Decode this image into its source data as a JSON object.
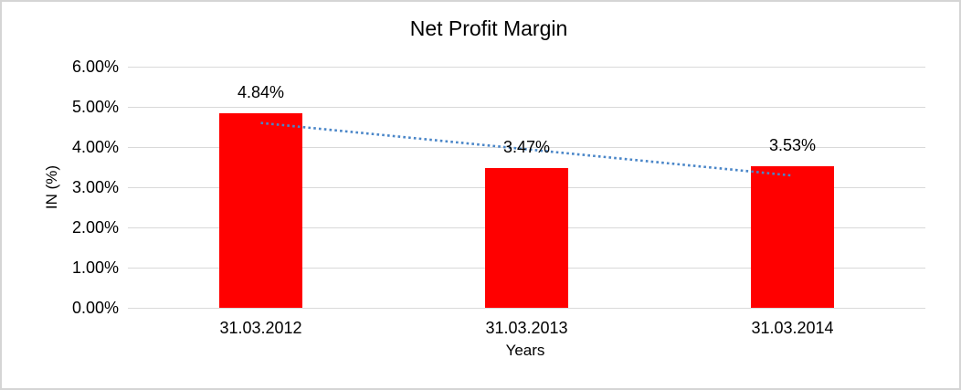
{
  "chart_data": {
    "type": "bar",
    "title": "Net Profit Margin",
    "xlabel": "Years",
    "ylabel": "IN (%)",
    "categories": [
      "31.03.2012",
      "31.03.2013",
      "31.03.2014"
    ],
    "series": [
      {
        "name": "Net Profit Margin",
        "values": [
          4.84,
          3.47,
          3.53
        ],
        "color": "#FF0000"
      }
    ],
    "data_labels": [
      "4.84%",
      "3.47%",
      "3.53%"
    ],
    "y_axis": {
      "tick_labels": [
        "6.00%",
        "5.00%",
        "4.00%",
        "3.00%",
        "2.00%",
        "1.00%",
        "0.00%"
      ],
      "tick_values": [
        6,
        5,
        4,
        3,
        2,
        1,
        0
      ],
      "min": 0,
      "max": 6
    },
    "grid": true,
    "legend": "none",
    "trendline": {
      "type": "linear",
      "style": "dotted",
      "color": "#4A86C8",
      "start_value": 4.6,
      "end_value": 3.29
    },
    "colors": {
      "bar": "#FF0000",
      "gridline": "#D9D9D9",
      "text": "#000000",
      "background": "#FFFFFF",
      "frame_border": "#D5D5D5"
    }
  }
}
